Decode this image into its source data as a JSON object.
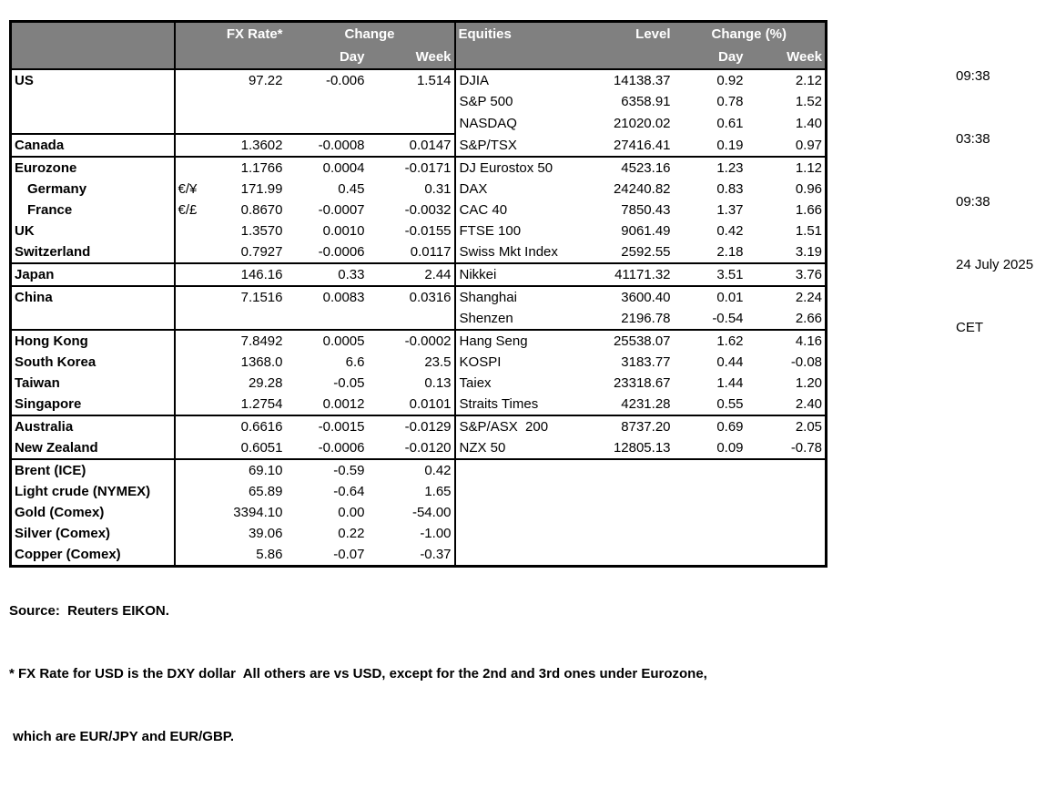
{
  "header": {
    "fx_rate": "FX Rate*",
    "change": "Change",
    "day": "Day",
    "week": "Week",
    "equities": "Equities",
    "level": "Level",
    "change_pct": "Change (%)"
  },
  "rows": [
    {
      "name": "US",
      "indent": false,
      "sym": "",
      "rate": "97.22",
      "day": "-0.006",
      "week": "1.514",
      "eq": "DJIA",
      "level": "14138.37",
      "eq_day": "0.92",
      "eq_week": "2.12",
      "line": "none"
    },
    {
      "name": "",
      "indent": false,
      "sym": "",
      "rate": "",
      "day": "",
      "week": "",
      "eq": "S&P 500",
      "level": "6358.91",
      "eq_day": "0.78",
      "eq_week": "1.52",
      "line": "none"
    },
    {
      "name": "",
      "indent": false,
      "sym": "",
      "rate": "",
      "day": "",
      "week": "",
      "eq": "NASDAQ",
      "level": "21020.02",
      "eq_day": "0.61",
      "eq_week": "1.40",
      "line": "none"
    },
    {
      "name": "Canada",
      "indent": false,
      "sym": "",
      "rate": "1.3602",
      "day": "-0.0008",
      "week": "0.0147",
      "eq": "S&P/TSX",
      "level": "27416.41",
      "eq_day": "0.19",
      "eq_week": "0.97",
      "line": "fx"
    },
    {
      "name": "Eurozone",
      "indent": false,
      "sym": "",
      "rate": "1.1766",
      "day": "0.0004",
      "week": "-0.0171",
      "eq": "DJ Eurostox 50",
      "level": "4523.16",
      "eq_day": "1.23",
      "eq_week": "1.12",
      "line": "full"
    },
    {
      "name": "Germany",
      "indent": true,
      "sym": "€/¥",
      "rate": "171.99",
      "day": "0.45",
      "week": "0.31",
      "eq": "DAX",
      "level": "24240.82",
      "eq_day": "0.83",
      "eq_week": "0.96",
      "line": "none"
    },
    {
      "name": "France",
      "indent": true,
      "sym": "€/£",
      "rate": "0.8670",
      "day": "-0.0007",
      "week": "-0.0032",
      "eq": "CAC 40",
      "level": "7850.43",
      "eq_day": "1.37",
      "eq_week": "1.66",
      "line": "none"
    },
    {
      "name": "UK",
      "indent": false,
      "sym": "",
      "rate": "1.3570",
      "day": "0.0010",
      "week": "-0.0155",
      "eq": "FTSE 100",
      "level": "9061.49",
      "eq_day": "0.42",
      "eq_week": "1.51",
      "line": "none"
    },
    {
      "name": "Switzerland",
      "indent": false,
      "sym": "",
      "rate": "0.7927",
      "day": "-0.0006",
      "week": "0.0117",
      "eq": "Swiss Mkt Index",
      "level": "2592.55",
      "eq_day": "2.18",
      "eq_week": "3.19",
      "line": "none"
    },
    {
      "name": "Japan",
      "indent": false,
      "sym": "",
      "rate": "146.16",
      "day": "0.33",
      "week": "2.44",
      "eq": "Nikkei",
      "level": "41171.32",
      "eq_day": "3.51",
      "eq_week": "3.76",
      "line": "full"
    },
    {
      "name": "China",
      "indent": false,
      "sym": "",
      "rate": "7.1516",
      "day": "0.0083",
      "week": "0.0316",
      "eq": "Shanghai",
      "level": "3600.40",
      "eq_day": "0.01",
      "eq_week": "2.24",
      "line": "full"
    },
    {
      "name": "",
      "indent": false,
      "sym": "",
      "rate": "",
      "day": "",
      "week": "",
      "eq": "Shenzen",
      "level": "2196.78",
      "eq_day": "-0.54",
      "eq_week": "2.66",
      "line": "none"
    },
    {
      "name": "Hong Kong",
      "indent": false,
      "sym": "",
      "rate": "7.8492",
      "day": "0.0005",
      "week": "-0.0002",
      "eq": "Hang Seng",
      "level": "25538.07",
      "eq_day": "1.62",
      "eq_week": "4.16",
      "line": "full"
    },
    {
      "name": "South Korea",
      "indent": false,
      "sym": "",
      "rate": "1368.0",
      "day": "6.6",
      "week": "23.5",
      "eq": "KOSPI",
      "level": "3183.77",
      "eq_day": "0.44",
      "eq_week": "-0.08",
      "line": "none"
    },
    {
      "name": "Taiwan",
      "indent": false,
      "sym": "",
      "rate": "29.28",
      "day": "-0.05",
      "week": "0.13",
      "eq": "Taiex",
      "level": "23318.67",
      "eq_day": "1.44",
      "eq_week": "1.20",
      "line": "none"
    },
    {
      "name": "Singapore",
      "indent": false,
      "sym": "",
      "rate": "1.2754",
      "day": "0.0012",
      "week": "0.0101",
      "eq": "Straits Times",
      "level": "4231.28",
      "eq_day": "0.55",
      "eq_week": "2.40",
      "line": "none"
    },
    {
      "name": "Australia",
      "indent": false,
      "sym": "",
      "rate": "0.6616",
      "day": "-0.0015",
      "week": "-0.0129",
      "eq": "S&P/ASX  200",
      "level": "8737.20",
      "eq_day": "0.69",
      "eq_week": "2.05",
      "line": "full"
    },
    {
      "name": "New Zealand",
      "indent": false,
      "sym": "",
      "rate": "0.6051",
      "day": "-0.0006",
      "week": "-0.0120",
      "eq": "NZX 50",
      "level": "12805.13",
      "eq_day": "0.09",
      "eq_week": "-0.78",
      "line": "none"
    },
    {
      "name": "Brent (ICE)",
      "indent": false,
      "sym": "",
      "rate": "69.10",
      "day": "-0.59",
      "week": "0.42",
      "eq": "",
      "level": "",
      "eq_day": "",
      "eq_week": "",
      "line": "full"
    },
    {
      "name": "Light crude (NYMEX)",
      "indent": false,
      "sym": "",
      "rate": "65.89",
      "day": "-0.64",
      "week": "1.65",
      "eq": "",
      "level": "",
      "eq_day": "",
      "eq_week": "",
      "line": "none"
    },
    {
      "name": "Gold (Comex)",
      "indent": false,
      "sym": "",
      "rate": "3394.10",
      "day": "0.00",
      "week": "-54.00",
      "eq": "",
      "level": "",
      "eq_day": "",
      "eq_week": "",
      "line": "none"
    },
    {
      "name": "Silver (Comex)",
      "indent": false,
      "sym": "",
      "rate": "39.06",
      "day": "0.22",
      "week": "-1.00",
      "eq": "",
      "level": "",
      "eq_day": "",
      "eq_week": "",
      "line": "none"
    },
    {
      "name": "Copper (Comex)",
      "indent": false,
      "sym": "",
      "rate": "5.86",
      "day": "-0.07",
      "week": "-0.37",
      "eq": "",
      "level": "",
      "eq_day": "",
      "eq_week": "",
      "line": "none"
    }
  ],
  "timestamps": [
    "09:38",
    "03:38",
    "09:38",
    "24 July 2025",
    "CET"
  ],
  "footer": {
    "source": "Source:  Reuters EIKON.",
    "note1": "* FX Rate for USD is the DXY dollar  All others are vs USD, except for the 2nd and 3rd ones under Eurozone,",
    "note2": " which are EUR/JPY and EUR/GBP."
  },
  "colors": {
    "header_bg": "#808080",
    "header_text": "#ffffff",
    "border": "#000000"
  }
}
